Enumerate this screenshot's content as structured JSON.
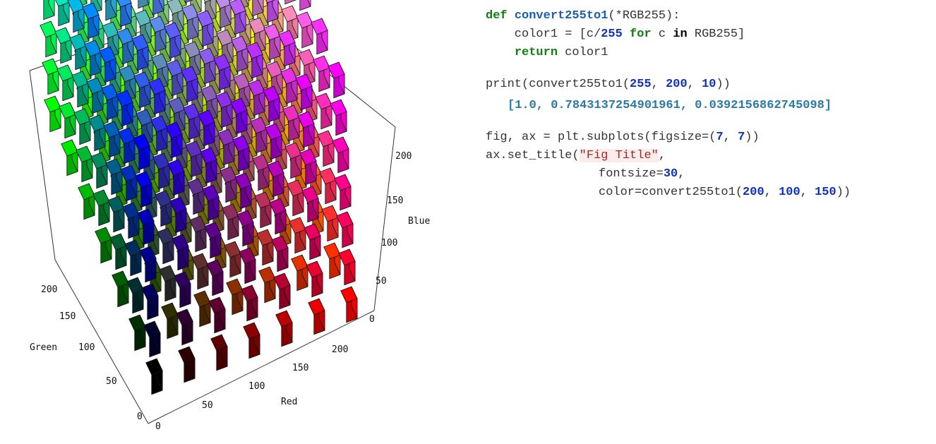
{
  "figure": {
    "axes": {
      "blue": {
        "label": "Blue",
        "ticks": [
          "0",
          "50",
          "100",
          "150",
          "200"
        ]
      },
      "green": {
        "label": "Green",
        "ticks": [
          "0",
          "50",
          "100",
          "150",
          "200"
        ]
      },
      "red": {
        "label": "Red",
        "ticks": [
          "0",
          "50",
          "100",
          "150",
          "200"
        ]
      }
    },
    "grid_steps": [
      0,
      1,
      2,
      3,
      4,
      5,
      6
    ],
    "channel_max": 255
  },
  "code": {
    "def_kw": "def",
    "func_name": "convert255to1",
    "def_params": "(*RGB255):",
    "line2_a": "    color1 = [c/",
    "line2_num": "255",
    "line2_for": "for",
    "line2_c": " c ",
    "line2_in": "in",
    "line2_b": " RGB255]",
    "return_kw": "return",
    "line3_b": " color1",
    "print_call": "print(convert255to1(",
    "print_a1": "255",
    "print_a2": "200",
    "print_a3": "10",
    "print_end": "))",
    "output": "[1.0, 0.7843137254901961, 0.0392156862745098]",
    "fig_line": "fig, ax = plt.subplots(figsize=(",
    "figsize_w": "7",
    "figsize_h": "7",
    "fig_end": "))",
    "title_call": "ax.set_title(",
    "title_str": "\"Fig Title\"",
    "fontsize_label": "fontsize=",
    "fontsize_val": "30",
    "color_call": "color=convert255to1(",
    "color_r": "200",
    "color_g": "100",
    "color_b": "150",
    "color_end": "))"
  }
}
